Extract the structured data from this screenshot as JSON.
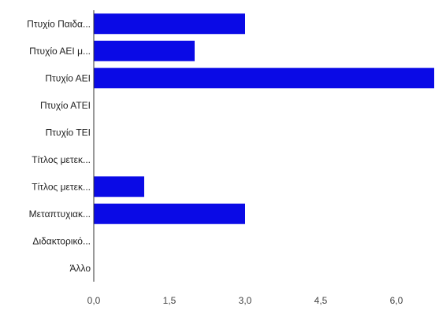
{
  "chart_data": {
    "type": "bar",
    "orientation": "horizontal",
    "title": "",
    "xlabel": "",
    "ylabel": "",
    "categories": [
      "Πτυχίο Παιδα...",
      "Πτυχίο ΑΕΙ μ...",
      "Πτυχίο ΑΕΙ",
      "Πτυχίο ΑΤΕΙ",
      "Πτυχίο ΤΕΙ",
      "Τίτλος μετεκ...",
      "Τίτλος μετεκ...",
      "Μεταπτυχιακ...",
      "Διδακτορικό...",
      "Άλλο"
    ],
    "values": [
      3,
      2,
      7,
      0,
      0,
      0,
      1,
      3,
      0,
      0
    ],
    "xlim": [
      0,
      6.75
    ],
    "x_ticks": [
      0,
      1.5,
      3,
      4.5,
      6
    ],
    "x_tick_labels": [
      "0,0",
      "1,5",
      "3,0",
      "4,5",
      "6,0"
    ],
    "bar_color": "#0a0ae6",
    "axis_color": "#333333",
    "grid": false,
    "legend": "none"
  }
}
